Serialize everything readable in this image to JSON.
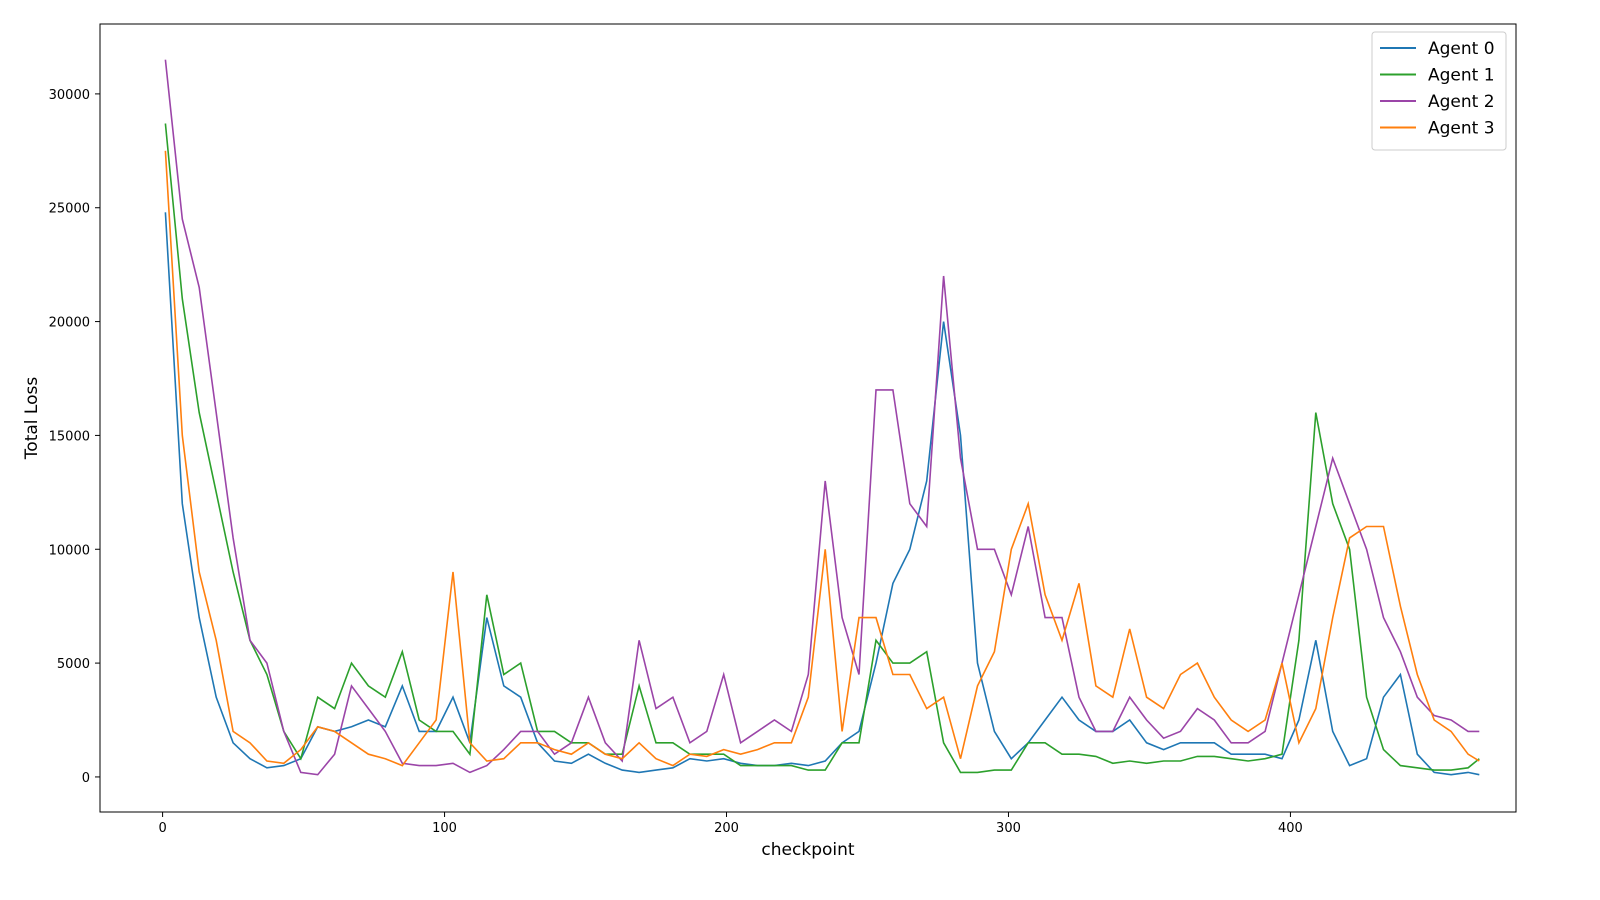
{
  "chart_data": {
    "type": "line",
    "xlabel": "checkpoint",
    "ylabel": "Total Loss",
    "x": [
      1,
      7,
      13,
      19,
      25,
      31,
      37,
      43,
      49,
      55,
      61,
      67,
      73,
      79,
      85,
      91,
      97,
      103,
      109,
      115,
      121,
      127,
      133,
      139,
      145,
      151,
      157,
      163,
      169,
      175,
      181,
      187,
      193,
      199,
      205,
      211,
      217,
      223,
      229,
      235,
      241,
      247,
      253,
      259,
      265,
      271,
      277,
      283,
      289,
      295,
      301,
      307,
      313,
      319,
      325,
      331,
      337,
      343,
      349,
      355,
      361,
      367,
      373,
      379,
      385,
      391,
      397,
      403,
      409,
      415,
      421,
      427,
      433,
      439,
      445,
      451,
      457,
      463,
      467
    ],
    "series": [
      {
        "name": "Agent 0",
        "color": "#1f77b4",
        "values": [
          24800,
          12000,
          7000,
          3500,
          1500,
          800,
          400,
          500,
          800,
          2200,
          2000,
          2200,
          2500,
          2200,
          4000,
          2000,
          2000,
          3500,
          1500,
          7000,
          4000,
          3500,
          1500,
          700,
          600,
          1000,
          600,
          300,
          200,
          300,
          400,
          800,
          700,
          800,
          600,
          500,
          500,
          600,
          500,
          700,
          1500,
          2000,
          5000,
          8500,
          10000,
          13000,
          20000,
          15000,
          5000,
          2000,
          800,
          1500,
          2500,
          3500,
          2500,
          2000,
          2000,
          2500,
          1500,
          1200,
          1500,
          1500,
          1500,
          1000,
          1000,
          1000,
          800,
          2500,
          6000,
          2000,
          500,
          800,
          3500,
          4500,
          1000,
          200,
          100,
          200,
          100
        ]
      },
      {
        "name": "Agent 1",
        "color": "#2ca02c",
        "values": [
          28700,
          21000,
          16000,
          12500,
          9000,
          6000,
          4500,
          2000,
          800,
          3500,
          3000,
          5000,
          4000,
          3500,
          5500,
          2500,
          2000,
          2000,
          1000,
          8000,
          4500,
          5000,
          2000,
          2000,
          1500,
          1500,
          1000,
          1000,
          4000,
          1500,
          1500,
          1000,
          1000,
          1000,
          500,
          500,
          500,
          500,
          300,
          300,
          1500,
          1500,
          6000,
          5000,
          5000,
          5500,
          1500,
          200,
          200,
          300,
          300,
          1500,
          1500,
          1000,
          1000,
          900,
          600,
          700,
          600,
          700,
          700,
          900,
          900,
          800,
          700,
          800,
          1000,
          6000,
          16000,
          12000,
          10000,
          3500,
          1200,
          500,
          400,
          300,
          300,
          400,
          800
        ]
      },
      {
        "name": "Agent 2",
        "color": "#9b45a8",
        "values": [
          31500,
          24500,
          21500,
          16000,
          10500,
          6000,
          5000,
          2000,
          200,
          100,
          1000,
          4000,
          3000,
          2000,
          600,
          500,
          500,
          600,
          200,
          500,
          1200,
          2000,
          2000,
          1000,
          1500,
          3500,
          1500,
          700,
          6000,
          3000,
          3500,
          1500,
          2000,
          4500,
          1500,
          2000,
          2500,
          2000,
          4500,
          13000,
          7000,
          4500,
          17000,
          17000,
          12000,
          11000,
          22000,
          14000,
          10000,
          10000,
          8000,
          11000,
          7000,
          7000,
          3500,
          2000,
          2000,
          3500,
          2500,
          1700,
          2000,
          3000,
          2500,
          1500,
          1500,
          2000,
          5000,
          8000,
          11000,
          14000,
          12000,
          10000,
          7000,
          5500,
          3500,
          2700,
          2500,
          2000,
          2000
        ]
      },
      {
        "name": "Agent 3",
        "color": "#ff7f0e",
        "values": [
          27500,
          15000,
          9000,
          6000,
          2000,
          1500,
          700,
          600,
          1200,
          2200,
          2000,
          1500,
          1000,
          800,
          500,
          1500,
          2500,
          9000,
          1500,
          700,
          800,
          1500,
          1500,
          1200,
          1000,
          1500,
          1000,
          800,
          1500,
          800,
          500,
          1000,
          900,
          1200,
          1000,
          1200,
          1500,
          1500,
          3500,
          10000,
          2000,
          7000,
          7000,
          4500,
          4500,
          3000,
          3500,
          800,
          4000,
          5500,
          10000,
          12000,
          8000,
          6000,
          8500,
          4000,
          3500,
          6500,
          3500,
          3000,
          4500,
          5000,
          3500,
          2500,
          2000,
          2500,
          5000,
          1500,
          3000,
          7000,
          10500,
          11000,
          11000,
          7500,
          4500,
          2500,
          2000,
          1000,
          700
        ]
      }
    ],
    "xlim": [
      -22.2,
      480
    ],
    "ylim": [
      -1540,
      33070
    ],
    "xticks": [
      0,
      100,
      200,
      300,
      400
    ],
    "yticks": [
      0,
      5000,
      10000,
      15000,
      20000,
      25000,
      30000
    ],
    "legend": "upper right"
  }
}
